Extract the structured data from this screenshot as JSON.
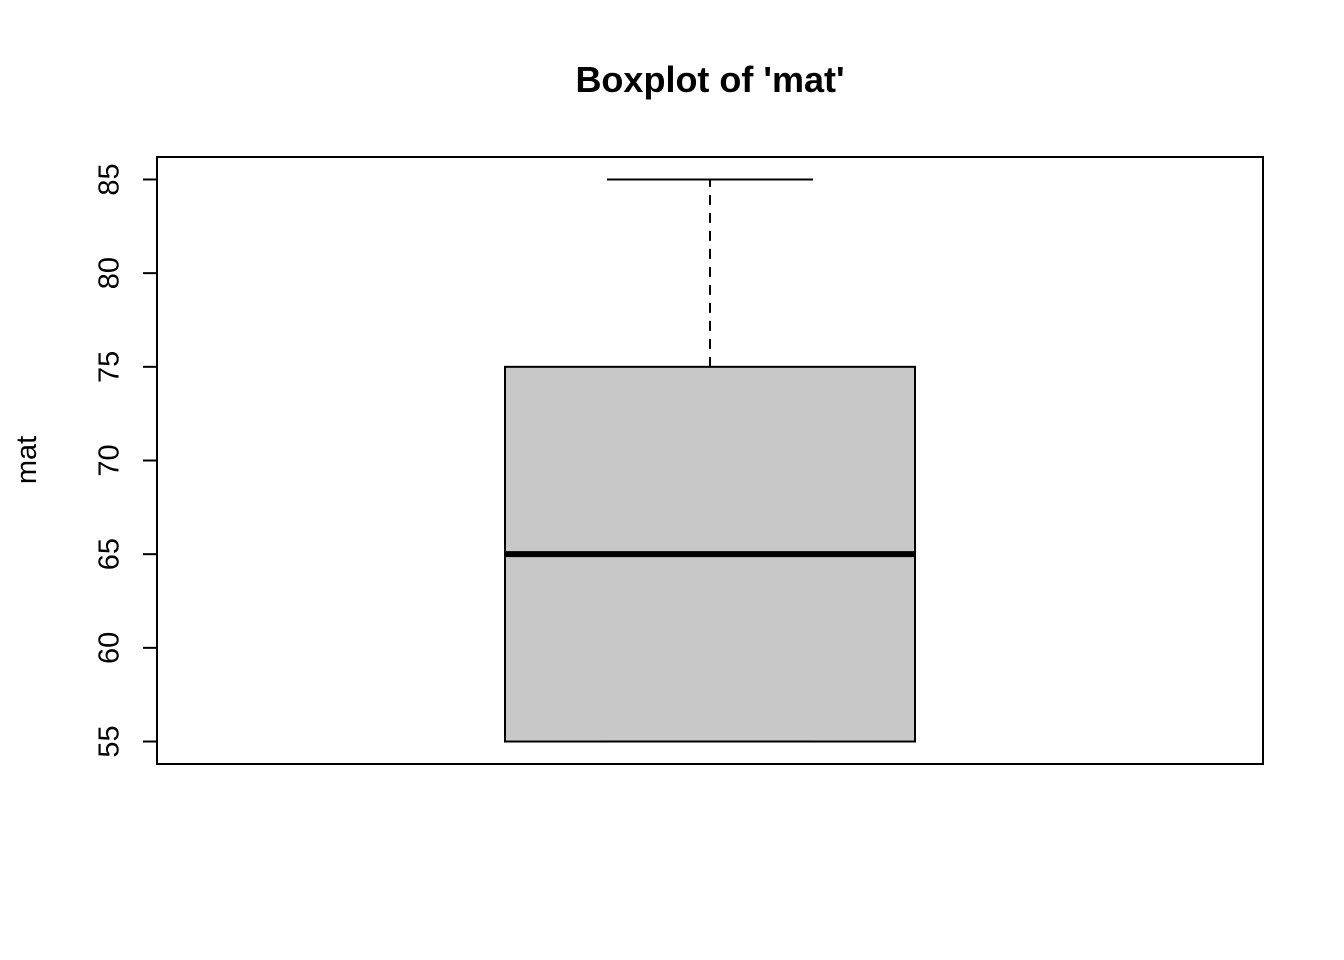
{
  "chart_data": {
    "type": "boxplot",
    "title": "Boxplot of 'mat'",
    "xlabel": "",
    "ylabel": "mat",
    "ylim": [
      53.8,
      86.2
    ],
    "yticks": [
      55,
      60,
      65,
      70,
      75,
      80,
      85
    ],
    "ytick_labels": [
      "55",
      "60",
      "65",
      "70",
      "75",
      "80",
      "85"
    ],
    "grid": false,
    "series": [
      {
        "min": 55,
        "q1": 55,
        "median": 65,
        "q3": 75,
        "max": 85
      }
    ],
    "colors": {
      "box_fill": "#c8c8c8",
      "stroke": "#000000",
      "background": "#ffffff"
    }
  }
}
